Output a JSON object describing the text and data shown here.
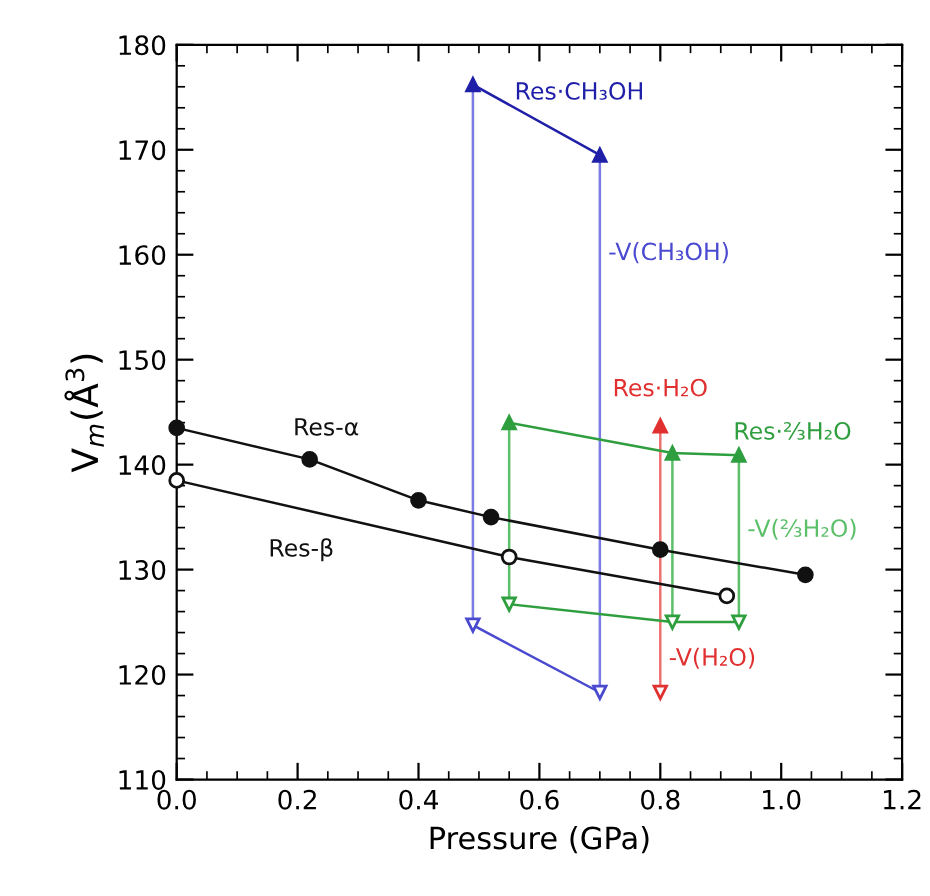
{
  "chart_data": {
    "type": "line",
    "xlabel": "Pressure (GPa)",
    "ylabel": "V$_{m}$(Å$^{3}$)",
    "xlim": [
      0,
      1.2
    ],
    "ylim": [
      110,
      180
    ],
    "xticks": [
      {
        "value": 0,
        "label": "0.0"
      },
      0.2,
      0.4,
      0.6,
      0.8,
      {
        "value": 1,
        "label": "1.0"
      },
      1.2
    ],
    "yticks": [
      110,
      120,
      130,
      140,
      150,
      160,
      170,
      180
    ],
    "grid": false,
    "legend": false,
    "series": [
      {
        "name": "Res-α",
        "color": "#111111",
        "marker": "circle",
        "x": [
          0,
          0.22,
          0.4,
          0.52,
          0.8,
          1.04
        ],
        "values": [
          143.5,
          140.5,
          136.6,
          135.0,
          131.9,
          129.5
        ]
      },
      {
        "name": "Res-β",
        "color": "#111111",
        "marker": "circle_open",
        "x": [
          0,
          0.55,
          0.91
        ],
        "values": [
          138.5,
          131.2,
          127.5
        ]
      },
      {
        "name": "Res·CH₃OH",
        "color": "#1f1fa8",
        "marker": "triangle",
        "x": [
          0.49,
          0.7
        ],
        "values": [
          176.2,
          169.5
        ]
      },
      {
        "color": "#7b7be6",
        "marker": "none",
        "x": [
          0.49,
          0.49
        ],
        "values": [
          176.2,
          124.7
        ]
      },
      {
        "color": "#7b7be6",
        "marker": "none",
        "x": [
          0.7,
          0.7
        ],
        "values": [
          169.5,
          118.3
        ]
      },
      {
        "name": "-V(CH₃OH)",
        "color": "#4a4ad0",
        "marker": "triangle_down_open",
        "x": [
          0.49,
          0.7
        ],
        "values": [
          124.7,
          118.3
        ]
      },
      {
        "name": "Res·H₂O",
        "color": "#e03030",
        "marker": "triangle",
        "x": [
          0.8
        ],
        "values": [
          143.7
        ]
      },
      {
        "color": "#ee7070",
        "marker": "none",
        "x": [
          0.8,
          0.8
        ],
        "values": [
          143.7,
          118.3
        ]
      },
      {
        "name": "-V(H₂O)",
        "color": "#e03030",
        "marker": "triangle_down_open",
        "x": [
          0.8
        ],
        "values": [
          118.3
        ]
      },
      {
        "name": "Res·⅔H₂O",
        "color": "#2e9e3e",
        "marker": "triangle",
        "x": [
          0.55,
          0.82,
          0.93
        ],
        "values": [
          144.0,
          141.1,
          140.9
        ]
      },
      {
        "color": "#5cbf6a",
        "marker": "none",
        "x": [
          0.55,
          0.55
        ],
        "values": [
          144.0,
          126.7
        ]
      },
      {
        "color": "#5cbf6a",
        "marker": "none",
        "x": [
          0.82,
          0.82
        ],
        "values": [
          141.1,
          125.0
        ]
      },
      {
        "name": "-V(⅔H₂O)",
        "color": "#5cbf6a",
        "marker": "none",
        "x": [
          0.93,
          0.93
        ],
        "values": [
          140.9,
          125.0
        ]
      },
      {
        "color": "#2e9e3e",
        "marker": "triangle_down_open",
        "x": [
          0.55,
          0.82,
          0.93
        ],
        "values": [
          126.7,
          125.0,
          125.0
        ]
      }
    ]
  }
}
